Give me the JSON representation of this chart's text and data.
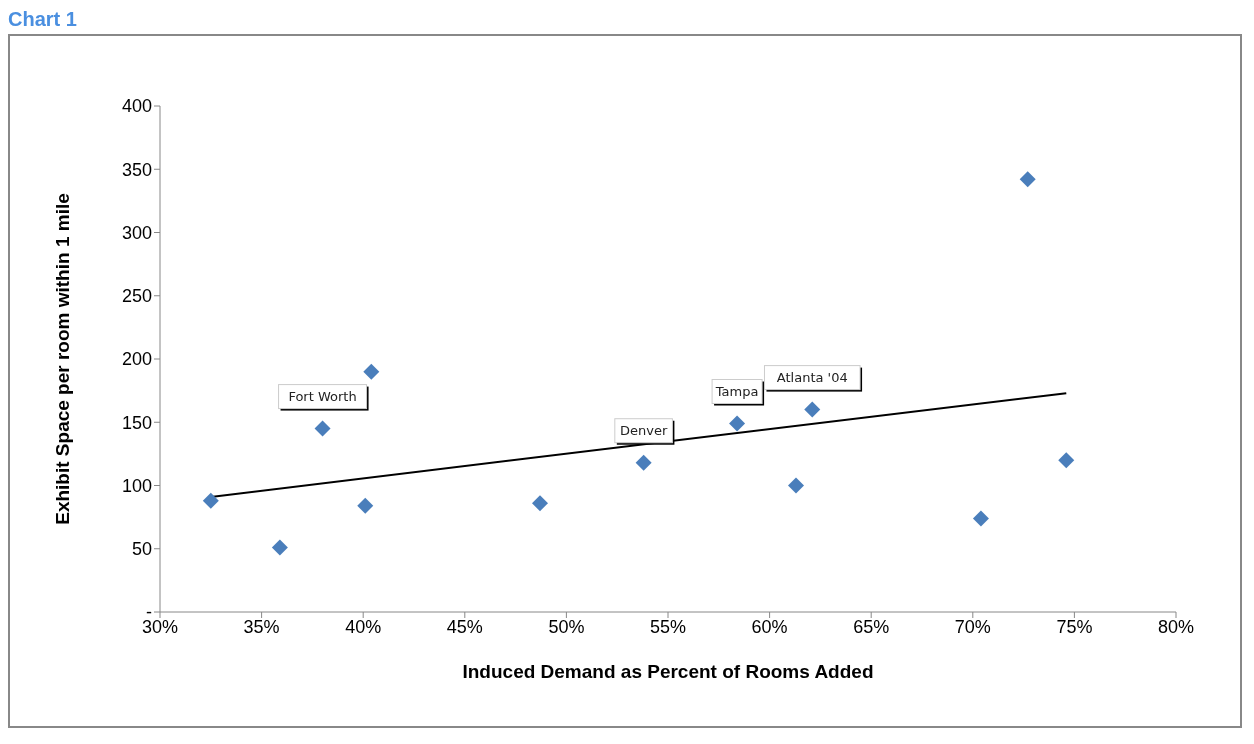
{
  "chart_data": {
    "type": "scatter",
    "title": "Chart 1",
    "xlabel": "Induced Demand as Percent of Rooms Added",
    "ylabel": "Exhibit Space per room within 1 mile",
    "series": [
      {
        "color": "#4a7ebb",
        "marker": "diamond",
        "x": [
          32.5,
          35.9,
          38.0,
          40.1,
          40.4,
          48.7,
          53.8,
          58.4,
          61.3,
          62.1,
          70.4,
          72.7,
          74.6
        ],
        "values": [
          88,
          51,
          145,
          84,
          190,
          86,
          118,
          149,
          100,
          160,
          74,
          342,
          120
        ]
      },
      {
        "type": "line",
        "color": "#000000",
        "marker": "none",
        "line_style": "solid",
        "x": [
          32.5,
          74.6
        ],
        "values": [
          91,
          173
        ]
      }
    ],
    "annotations": [
      {
        "text": "Fort Worth",
        "x": 38.0,
        "y": 145
      },
      {
        "text": "Denver",
        "x": 53.8,
        "y": 118
      },
      {
        "text": "Tampa",
        "x": 58.4,
        "y": 149
      },
      {
        "text": "Atlanta '04",
        "x": 62.1,
        "y": 160
      }
    ],
    "xlim": [
      30,
      80
    ],
    "xticks": [
      {
        "value": 30,
        "label": "30%"
      },
      {
        "value": 35,
        "label": "35%"
      },
      {
        "value": 40,
        "label": "40%"
      },
      {
        "value": 45,
        "label": "45%"
      },
      {
        "value": 50,
        "label": "50%"
      },
      {
        "value": 55,
        "label": "55%"
      },
      {
        "value": 60,
        "label": "60%"
      },
      {
        "value": 65,
        "label": "65%"
      },
      {
        "value": 70,
        "label": "70%"
      },
      {
        "value": 75,
        "label": "75%"
      },
      {
        "value": 80,
        "label": "80%"
      }
    ],
    "ylim": [
      0,
      400
    ],
    "yticks": [
      {
        "value": 0,
        "label": "-"
      },
      50,
      100,
      150,
      200,
      250,
      300,
      350,
      400
    ],
    "grid": false,
    "legend": false
  }
}
